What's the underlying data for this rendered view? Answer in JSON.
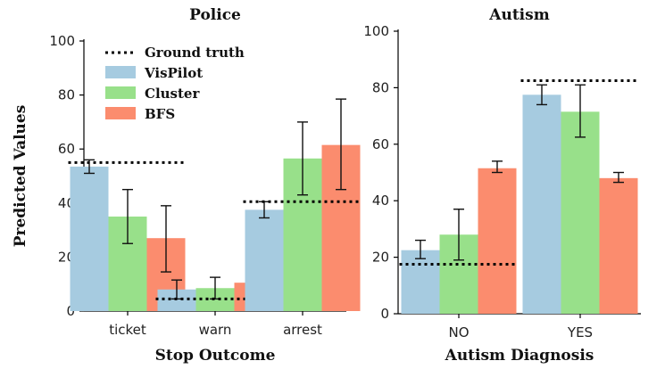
{
  "chart_data": [
    {
      "type": "bar",
      "title": "Police",
      "xlabel": "Stop Outcome",
      "ylabel": "Predicted Values",
      "ylim": [
        0,
        100
      ],
      "yticks": [
        0,
        20,
        40,
        60,
        80,
        100
      ],
      "categories": [
        "ticket",
        "warn",
        "arrest"
      ],
      "series": [
        {
          "name": "VisPilot",
          "values": [
            53.5,
            8,
            37.5
          ],
          "err_low": [
            51,
            4.5,
            34.5
          ],
          "err_high": [
            56,
            11.5,
            40.5
          ]
        },
        {
          "name": "Cluster",
          "values": [
            35,
            8.5,
            56.5
          ],
          "err_low": [
            25,
            4.5,
            43
          ],
          "err_high": [
            45,
            12.5,
            70
          ]
        },
        {
          "name": "BFS",
          "values": [
            27,
            10.5,
            61.5
          ],
          "err_low": [
            14.5,
            5,
            45
          ],
          "err_high": [
            39,
            16,
            78.5
          ]
        }
      ],
      "ground_truth": {
        "name": "Ground truth",
        "values": [
          55,
          4.5,
          40.5
        ]
      },
      "legend": "top-left",
      "grid": false
    },
    {
      "type": "bar",
      "title": "Autism",
      "xlabel": "Autism Diagnosis",
      "ylabel": "",
      "ylim": [
        0,
        100
      ],
      "yticks": [
        0,
        20,
        40,
        60,
        80,
        100
      ],
      "categories": [
        "NO",
        "YES"
      ],
      "series": [
        {
          "name": "VisPilot",
          "values": [
            22.5,
            77.5
          ],
          "err_low": [
            19.5,
            74
          ],
          "err_high": [
            26,
            81
          ]
        },
        {
          "name": "Cluster",
          "values": [
            28,
            71.5
          ],
          "err_low": [
            19,
            62.5
          ],
          "err_high": [
            37,
            81
          ]
        },
        {
          "name": "BFS",
          "values": [
            51.5,
            48
          ],
          "err_low": [
            50,
            46.5
          ],
          "err_high": [
            54,
            50
          ]
        }
      ],
      "ground_truth": {
        "name": "Ground truth",
        "values": [
          17.5,
          82.5
        ]
      },
      "grid": false
    }
  ],
  "colors": {
    "VisPilot": "#a6cbe0",
    "Cluster": "#98e08a",
    "BFS": "#fb8c6e",
    "ground_truth": "#000000"
  }
}
